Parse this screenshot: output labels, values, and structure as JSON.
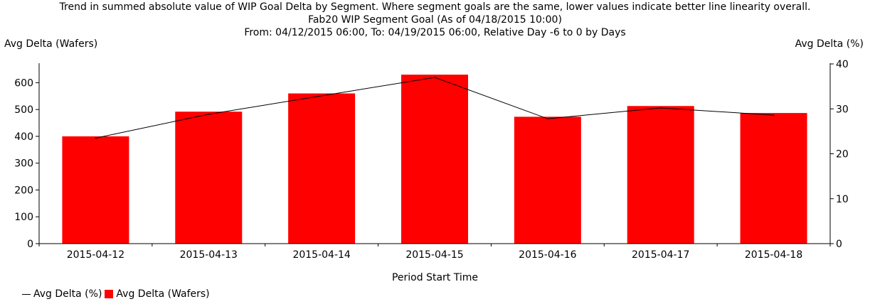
{
  "chart_data": {
    "type": "bar",
    "title_lines": [
      "Trend in summed absolute value of WIP Goal Delta by Segment. Where segment goals are the same, lower values indicate better line linearity overall.",
      "Fab20 WIP Segment Goal (As of 04/18/2015 10:00)",
      "From: 04/12/2015 06:00, To: 04/19/2015 06:00, Relative Day -6 to 0 by Days"
    ],
    "xlabel": "Period Start Time",
    "ylabel": "Avg Delta (Wafers)",
    "y2label": "Avg Delta (%)",
    "categories": [
      "2015-04-12",
      "2015-04-13",
      "2015-04-14",
      "2015-04-15",
      "2015-04-16",
      "2015-04-17",
      "2015-04-18"
    ],
    "series": [
      {
        "name": "Avg Delta (Wafers)",
        "type": "bar",
        "axis": "left",
        "color": "#ff0000",
        "values": [
          400,
          492,
          560,
          630,
          473,
          513,
          487
        ]
      },
      {
        "name": "Avg Delta (%)",
        "type": "line",
        "axis": "right",
        "color": "#000000",
        "values": [
          23.5,
          28.8,
          32.9,
          37.0,
          27.8,
          30.2,
          28.6
        ]
      }
    ],
    "ylim": [
      0,
      670
    ],
    "yticks": [
      0,
      100,
      200,
      300,
      400,
      500,
      600
    ],
    "y2lim": [
      0,
      40
    ],
    "y2ticks": [
      0,
      10,
      20,
      30,
      40
    ],
    "legend": [
      "Avg Delta (%)",
      "Avg Delta (Wafers)"
    ],
    "legend_position": "bottom-left",
    "grid": false
  }
}
